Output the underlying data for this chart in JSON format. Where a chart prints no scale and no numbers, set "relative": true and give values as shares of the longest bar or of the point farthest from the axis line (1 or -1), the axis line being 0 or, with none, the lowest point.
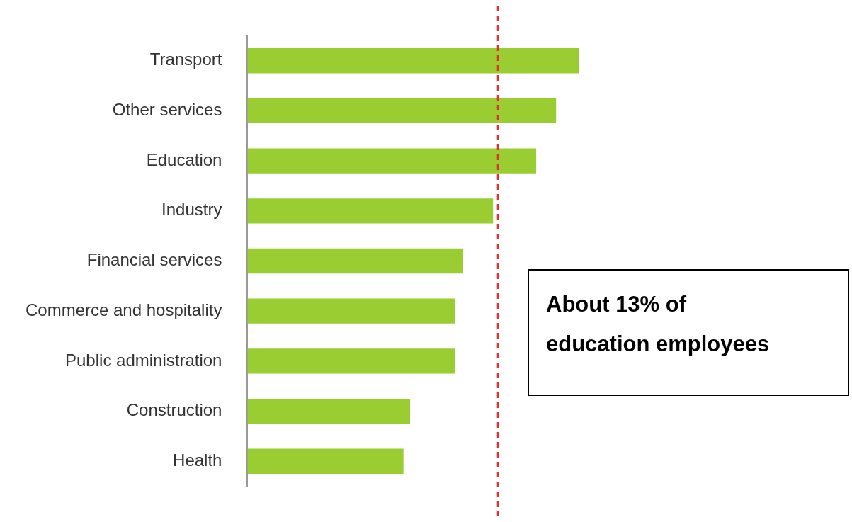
{
  "chart_data": {
    "type": "bar",
    "orientation": "horizontal",
    "relative": true,
    "categories": [
      "Transport",
      "Other services",
      "Education",
      "Industry",
      "Financial services",
      "Commerce and hospitality",
      "Public administration",
      "Construction",
      "Health"
    ],
    "values": [
      1,
      0.93,
      0.87,
      0.74,
      0.65,
      0.625,
      0.625,
      0.49,
      0.47
    ],
    "color": "#9acd32",
    "ref_lines": [
      {
        "axis": "x",
        "value": 0.755,
        "color": "#e03030",
        "line_style": "dashed"
      }
    ],
    "annotations": [
      "About 13% of education employees"
    ],
    "legend": false
  }
}
